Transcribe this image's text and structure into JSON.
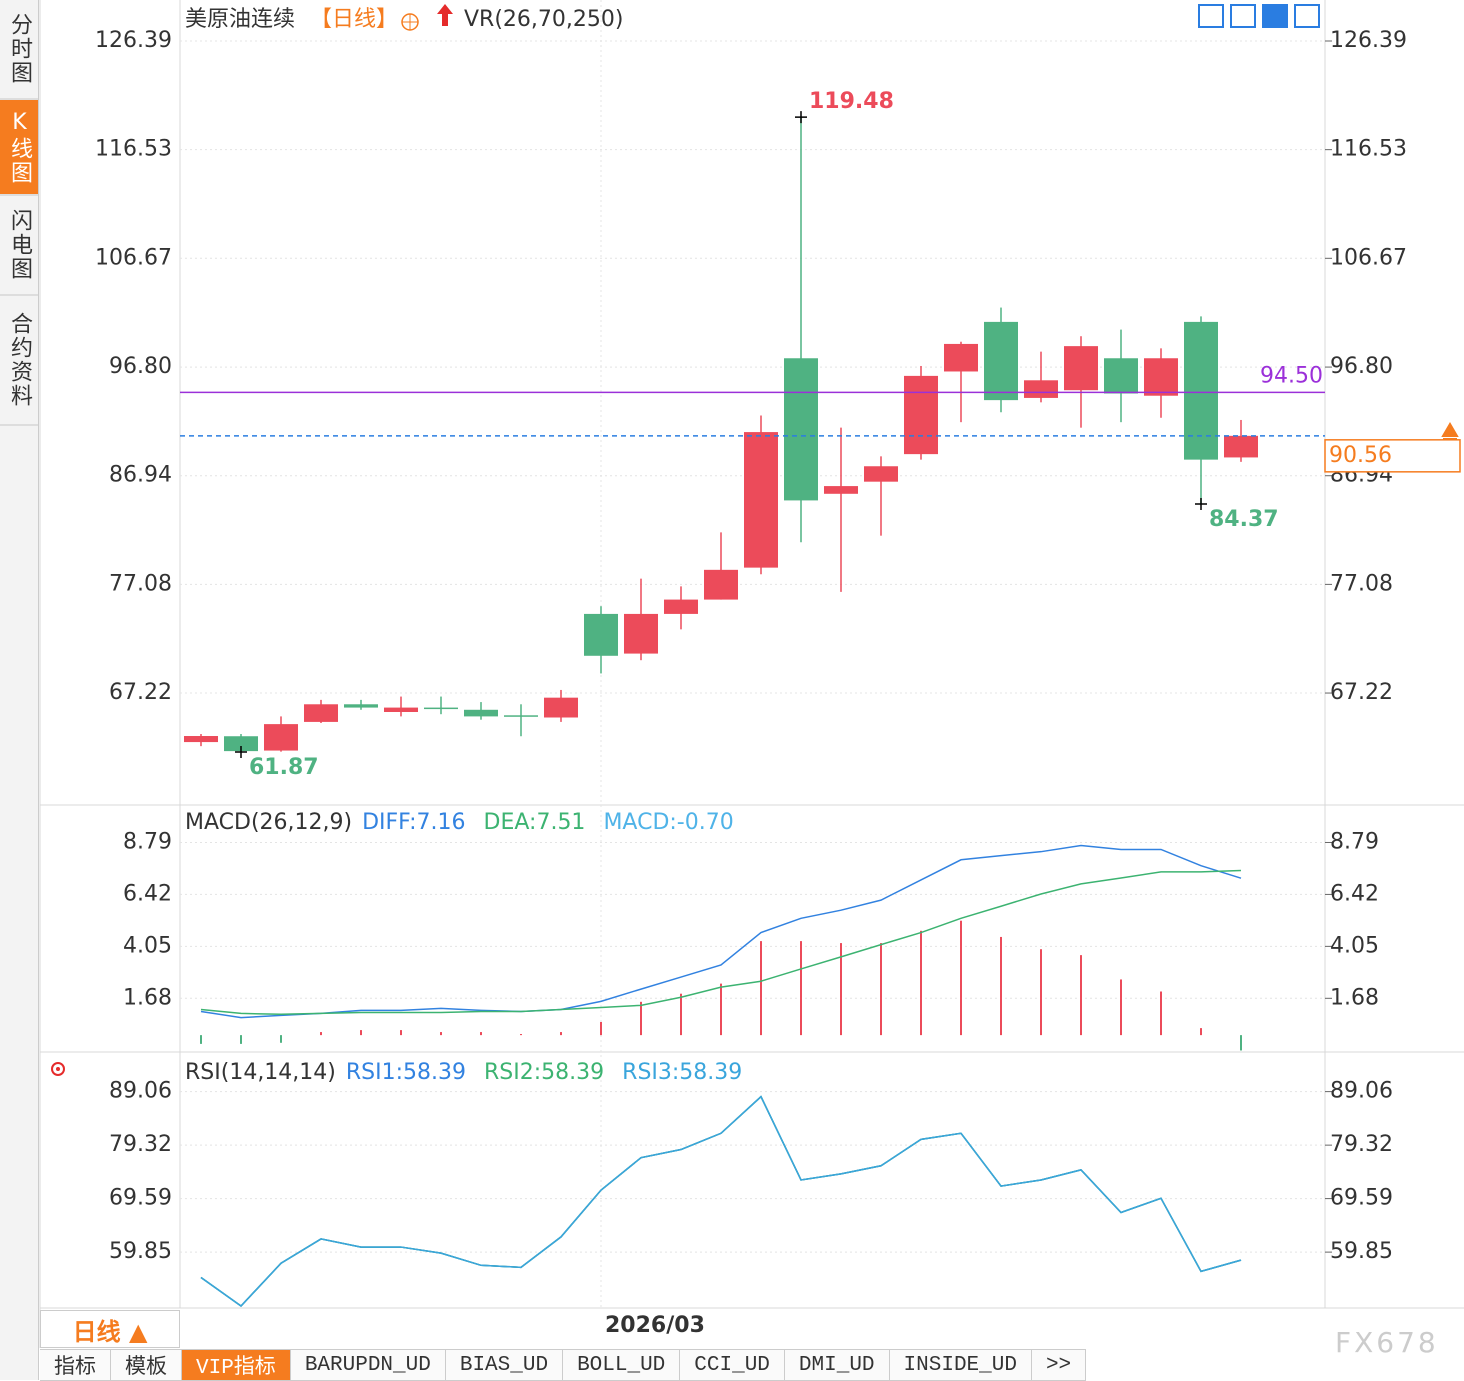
{
  "sidebar": {
    "tabs": [
      "分时图",
      "K线图",
      "闪电图",
      "合约资料"
    ],
    "active": 1
  },
  "chart_data": [
    {
      "type": "candlestick",
      "title": "美原油连续",
      "period": "【日线】",
      "indicator": "VR(26,70,250)",
      "categories": [
        null,
        null,
        null,
        null,
        null,
        null,
        null,
        null,
        null,
        null,
        "2026/03",
        null,
        null,
        null,
        null,
        null,
        null,
        null,
        null,
        null,
        null,
        null,
        null,
        null,
        null,
        null,
        null
      ],
      "open": [
        62.77,
        63.3,
        62.0,
        64.6,
        66.2,
        65.5,
        65.9,
        65.7,
        65.2,
        65.0,
        74.4,
        70.8,
        74.4,
        75.7,
        78.6,
        97.6,
        85.3,
        86.4,
        88.9,
        96.4,
        100.9,
        94.0,
        94.7,
        97.6,
        94.2,
        100.9,
        88.6
      ],
      "high": [
        63.5,
        63.5,
        65.1,
        66.6,
        66.6,
        66.9,
        66.9,
        66.4,
        66.2,
        67.5,
        75.1,
        77.6,
        76.9,
        81.8,
        92.4,
        119.48,
        91.3,
        88.7,
        96.9,
        99.1,
        102.2,
        98.2,
        99.6,
        100.2,
        98.5,
        101.4,
        92.0
      ],
      "low": [
        62.4,
        61.87,
        61.9,
        64.5,
        65.7,
        65.1,
        65.3,
        64.8,
        63.3,
        64.6,
        69.0,
        70.2,
        73.0,
        75.7,
        78.0,
        80.9,
        76.4,
        81.5,
        88.4,
        91.8,
        92.7,
        93.6,
        91.3,
        91.8,
        92.2,
        84.37,
        88.2
      ],
      "close": [
        63.32,
        61.95,
        64.4,
        66.2,
        65.9,
        65.9,
        65.8,
        65.1,
        65.1,
        66.8,
        70.6,
        74.4,
        75.7,
        78.4,
        90.9,
        84.7,
        86.0,
        87.8,
        96.0,
        98.9,
        93.8,
        95.6,
        98.7,
        94.4,
        97.6,
        88.4,
        90.56
      ],
      "up_color": "#ec4b5a",
      "down_color": "#4fb282",
      "annotations": [
        {
          "index": 15,
          "value": 119.48,
          "color": "#ec4b5a"
        },
        {
          "index": 1,
          "value": 61.87,
          "color": "#4fb282"
        },
        {
          "index": 25,
          "value": 84.37,
          "color": "#4fb282"
        }
      ],
      "reference_line": {
        "value": 94.5,
        "label": "94.50",
        "color": "#9b30d9"
      },
      "ylim": [
        57.06,
        130.11
      ],
      "yticks": [
        126.39,
        116.53,
        106.67,
        {
          "value": 96.8,
          "label": "96.80"
        },
        86.94,
        77.08,
        67.22
      ],
      "grid": true
    },
    {
      "type": "macd",
      "title": "MACD(26,12,9)",
      "series": [
        {
          "name": "DIFF:7.16",
          "color": "#3282e0",
          "values": [
            1.08,
            0.8,
            0.9,
            0.99,
            1.13,
            1.13,
            1.22,
            1.13,
            1.08,
            1.17,
            1.54,
            2.1,
            2.65,
            3.2,
            4.68,
            5.33,
            5.7,
            6.16,
            7.08,
            8.0,
            8.19,
            8.37,
            8.65,
            8.47,
            8.47,
            7.73,
            7.16
          ]
        },
        {
          "name": "DEA:7.51",
          "color": "#3cb371",
          "values": [
            1.17,
            0.99,
            0.95,
            0.99,
            1.03,
            1.03,
            1.03,
            1.08,
            1.08,
            1.17,
            1.26,
            1.36,
            1.73,
            2.19,
            2.46,
            3.02,
            3.57,
            4.13,
            4.68,
            5.33,
            5.88,
            6.44,
            6.9,
            7.17,
            7.45,
            7.45,
            7.51
          ]
        },
        {
          "name": "MACD:-0.70",
          "color": "#4fb3e8",
          "values": [
            -0.4,
            -0.4,
            -0.35,
            0.14,
            0.23,
            0.23,
            0.14,
            0.14,
            0.05,
            0.14,
            0.6,
            1.52,
            1.89,
            2.35,
            4.29,
            4.29,
            4.2,
            4.2,
            4.76,
            5.22,
            4.48,
            3.92,
            3.65,
            2.54,
            1.99,
            0.32,
            -0.7
          ]
        }
      ],
      "up_color": "#ec4b5a",
      "down_color": "#4fb282",
      "ylim": [
        -0.77,
        10.5
      ],
      "yticks": [
        8.79,
        6.42,
        4.05,
        1.68
      ],
      "grid": true
    },
    {
      "type": "line",
      "title": "RSI(14,14,14)",
      "series": [
        {
          "name": "RSI1:58.39",
          "color": "#3282e0",
          "values": [
            55.23,
            50.05,
            57.82,
            62.25,
            60.77,
            60.77,
            59.67,
            57.45,
            57.08,
            62.62,
            71.13,
            77.04,
            78.52,
            81.48,
            88.14,
            72.98,
            74.09,
            75.56,
            80.37,
            81.48,
            71.87,
            72.98,
            74.82,
            67.06,
            69.65,
            56.34,
            58.39
          ]
        },
        {
          "name": "RSI2:58.39",
          "color": "#3cb371",
          "values": [
            55.23,
            50.05,
            57.82,
            62.25,
            60.77,
            60.77,
            59.67,
            57.45,
            57.08,
            62.62,
            71.13,
            77.04,
            78.52,
            81.48,
            88.14,
            72.98,
            74.09,
            75.56,
            80.37,
            81.48,
            71.87,
            72.98,
            74.82,
            67.06,
            69.65,
            56.34,
            58.39
          ]
        },
        {
          "name": "RSI3:58.39",
          "color": "#3aa5dc",
          "values": [
            55.23,
            50.05,
            57.82,
            62.25,
            60.77,
            60.77,
            59.67,
            57.45,
            57.08,
            62.62,
            71.13,
            77.04,
            78.52,
            81.48,
            88.14,
            72.98,
            74.09,
            75.56,
            80.37,
            81.48,
            71.87,
            72.98,
            74.82,
            67.06,
            69.65,
            56.34,
            58.39
          ]
        }
      ],
      "ylim": [
        49.68,
        96.27
      ],
      "yticks": [
        89.06,
        79.32,
        69.59,
        59.85
      ],
      "grid": true
    }
  ],
  "period_selector": "日线 ▲",
  "bottom_tabs": {
    "tabs": [
      "指标",
      "模板",
      "VIP指标",
      "BARUPDN_UD",
      "BIAS_UD",
      "BOLL_UD",
      "CCI_UD",
      "DMI_UD",
      "INSIDE_UD",
      ">>"
    ],
    "active": 2
  },
  "watermark": "FX678"
}
